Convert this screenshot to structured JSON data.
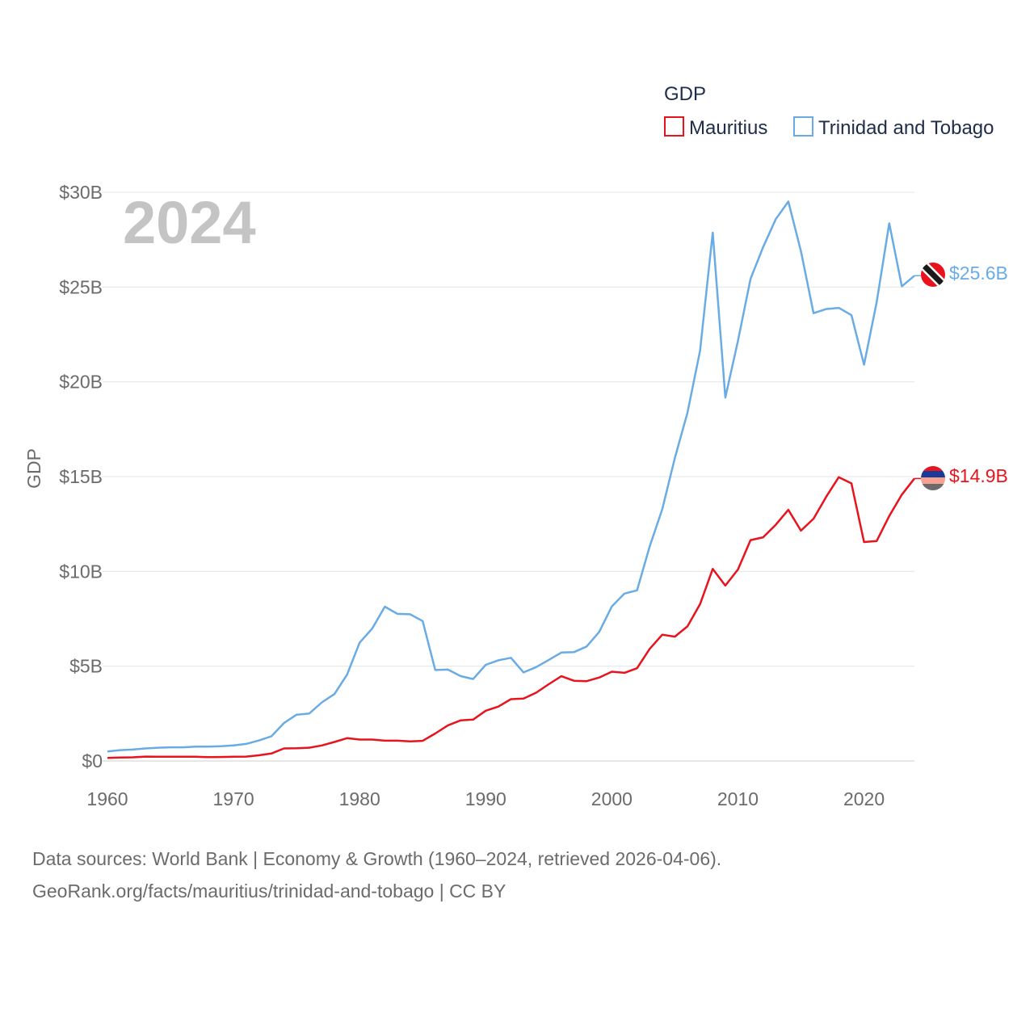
{
  "chart_data": {
    "type": "line",
    "legend_title": "GDP",
    "ylabel": "GDP",
    "year_label": "2024",
    "ylim": [
      0,
      30
    ],
    "y_ticks": [
      {
        "value": 0,
        "label": "$0"
      },
      {
        "value": 5,
        "label": "$5B"
      },
      {
        "value": 10,
        "label": "$10B"
      },
      {
        "value": 15,
        "label": "$15B"
      },
      {
        "value": 20,
        "label": "$20B"
      },
      {
        "value": 25,
        "label": "$25B"
      },
      {
        "value": 30,
        "label": "$30B"
      }
    ],
    "x_ticks": [
      "1960",
      "1970",
      "1980",
      "1990",
      "2000",
      "2010",
      "2020"
    ],
    "x": [
      1960,
      1961,
      1962,
      1963,
      1964,
      1965,
      1966,
      1967,
      1968,
      1969,
      1970,
      1971,
      1972,
      1973,
      1974,
      1975,
      1976,
      1977,
      1978,
      1979,
      1980,
      1981,
      1982,
      1983,
      1984,
      1985,
      1986,
      1987,
      1988,
      1989,
      1990,
      1991,
      1992,
      1993,
      1994,
      1995,
      1996,
      1997,
      1998,
      1999,
      2000,
      2001,
      2002,
      2003,
      2004,
      2005,
      2006,
      2007,
      2008,
      2009,
      2010,
      2011,
      2012,
      2013,
      2014,
      2015,
      2016,
      2017,
      2018,
      2019,
      2020,
      2021,
      2022,
      2023,
      2024
    ],
    "series": [
      {
        "name": "Mauritius",
        "color": "#e8131c",
        "end_label": "$14.9B",
        "flag": "mauritius-flag-icon",
        "values": [
          0.16,
          0.18,
          0.19,
          0.23,
          0.22,
          0.22,
          0.22,
          0.22,
          0.2,
          0.21,
          0.22,
          0.23,
          0.3,
          0.39,
          0.66,
          0.67,
          0.7,
          0.82,
          1.0,
          1.2,
          1.13,
          1.13,
          1.07,
          1.07,
          1.03,
          1.06,
          1.45,
          1.88,
          2.14,
          2.18,
          2.65,
          2.87,
          3.26,
          3.29,
          3.6,
          4.05,
          4.47,
          4.23,
          4.21,
          4.4,
          4.71,
          4.65,
          4.89,
          5.91,
          6.66,
          6.56,
          7.1,
          8.27,
          10.13,
          9.25,
          10.1,
          11.65,
          11.8,
          12.46,
          13.25,
          12.15,
          12.78,
          13.93,
          14.97,
          14.64,
          11.55,
          11.6,
          12.92,
          14.05,
          14.9
        ]
      },
      {
        "name": "Trinidad and Tobago",
        "color": "#69ace5",
        "end_label": "$25.6B",
        "flag": "trinidad-and-tobago-flag-icon",
        "values": [
          0.5,
          0.57,
          0.6,
          0.66,
          0.7,
          0.72,
          0.72,
          0.76,
          0.76,
          0.78,
          0.82,
          0.9,
          1.08,
          1.3,
          2.0,
          2.44,
          2.5,
          3.09,
          3.53,
          4.55,
          6.24,
          6.99,
          8.14,
          7.76,
          7.74,
          7.38,
          4.8,
          4.82,
          4.48,
          4.32,
          5.07,
          5.31,
          5.44,
          4.67,
          4.95,
          5.33,
          5.72,
          5.74,
          6.04,
          6.81,
          8.15,
          8.83,
          9.0,
          11.31,
          13.28,
          15.98,
          18.37,
          21.64,
          27.87,
          19.17,
          22.16,
          25.43,
          27.11,
          28.58,
          29.51,
          26.89,
          23.62,
          23.84,
          23.9,
          23.52,
          20.9,
          24.19,
          28.36,
          25.04,
          25.6
        ]
      }
    ]
  },
  "source": {
    "line1": "Data sources: World Bank | Economy & Growth (1960–2024, retrieved 2026-04-06).",
    "line2": "GeoRank.org/facts/mauritius/trinidad-and-tobago | CC BY"
  }
}
